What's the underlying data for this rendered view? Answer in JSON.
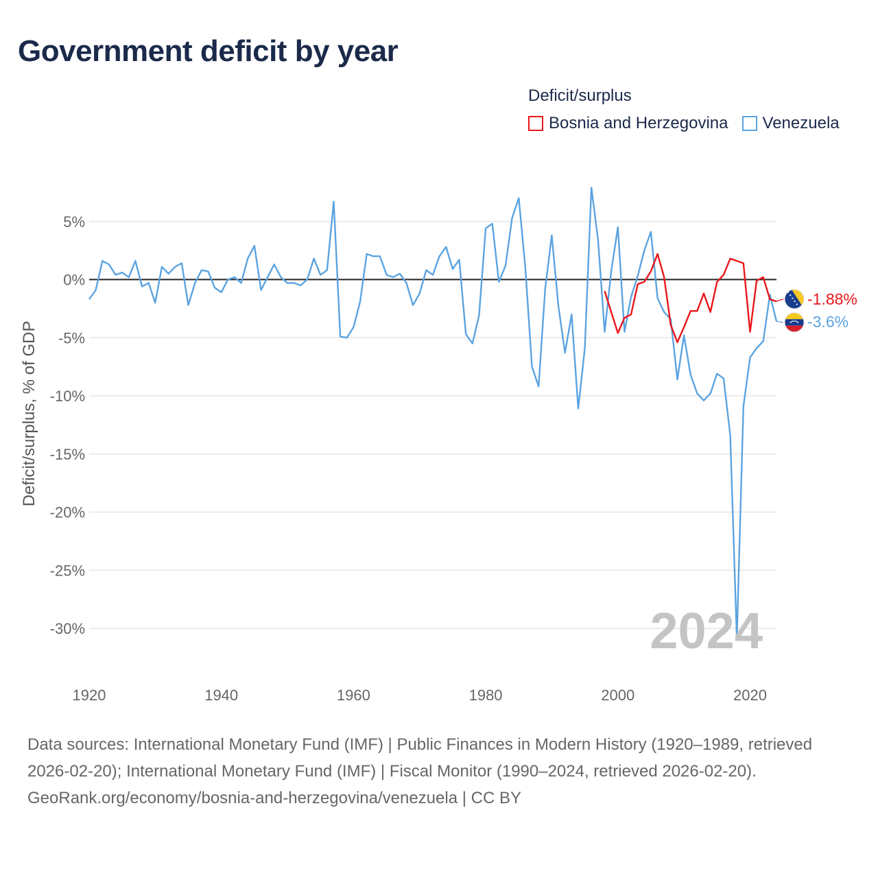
{
  "title": "Government deficit by year",
  "legend": {
    "title": "Deficit/surplus",
    "items": [
      {
        "label": "Bosnia and Herzegovina",
        "color": "#e8161b"
      },
      {
        "label": "Venezuela",
        "color": "#5ba3e0"
      }
    ]
  },
  "footer": {
    "sources": "Data sources: International Monetary Fund (IMF) | Public Finances in Modern History (1920–1989, retrieved 2026-02-20); International Monetary Fund (IMF) | Fiscal Monitor (1990–2024, retrieved 2026-02-20).",
    "link": "GeoRank.org/economy/bosnia-and-herzegovina/venezuela | CC BY"
  },
  "chart_data": {
    "type": "line",
    "title": "Government deficit by year",
    "xlabel": "",
    "ylabel": "Deficit/surplus, % of GDP",
    "xlim": [
      1920,
      2024
    ],
    "ylim": [
      -32,
      10
    ],
    "x_ticks": [
      1920,
      1940,
      1960,
      1980,
      2000,
      2020
    ],
    "x_tick_labels": [
      "1920",
      "1940",
      "1960",
      "1980",
      "2000",
      "2020"
    ],
    "y_ticks": [
      5,
      0,
      -5,
      -10,
      -15,
      -20,
      -25,
      -30
    ],
    "y_tick_labels": [
      "5%",
      "0%",
      "-5%",
      "-10%",
      "-15%",
      "-20%",
      "-25%",
      "-30%"
    ],
    "year_label": "2024",
    "grid": true,
    "zero_line": true,
    "legend_position": "top-right",
    "series": [
      {
        "name": "Bosnia and Herzegovina",
        "color": "#e8161b",
        "end_label": "-1.88%",
        "flag": "bosnia-and-herzegovina-flag",
        "x": [
          1998,
          1999,
          2000,
          2001,
          2002,
          2003,
          2004,
          2005,
          2006,
          2007,
          2008,
          2009,
          2010,
          2011,
          2012,
          2013,
          2014,
          2015,
          2016,
          2017,
          2018,
          2019,
          2020,
          2021,
          2022,
          2023,
          2024
        ],
        "values": [
          -1.0,
          -2.8,
          -4.6,
          -3.3,
          -3.0,
          -0.4,
          -0.2,
          0.7,
          2.2,
          0.2,
          -3.9,
          -5.4,
          -4.1,
          -2.7,
          -2.7,
          -1.2,
          -2.8,
          -0.2,
          0.4,
          1.8,
          1.6,
          1.4,
          -4.5,
          -0.1,
          0.2,
          -1.7,
          -1.88
        ]
      },
      {
        "name": "Venezuela",
        "color": "#5ba3e0",
        "end_label": "-3.6%",
        "flag": "venezuela-flag",
        "x": [
          1920,
          1921,
          1922,
          1923,
          1924,
          1925,
          1926,
          1927,
          1928,
          1929,
          1930,
          1931,
          1932,
          1933,
          1934,
          1935,
          1936,
          1937,
          1938,
          1939,
          1940,
          1941,
          1942,
          1943,
          1944,
          1945,
          1946,
          1947,
          1948,
          1949,
          1950,
          1951,
          1952,
          1953,
          1954,
          1955,
          1956,
          1957,
          1958,
          1959,
          1960,
          1961,
          1962,
          1963,
          1964,
          1965,
          1966,
          1967,
          1968,
          1969,
          1970,
          1971,
          1972,
          1973,
          1974,
          1975,
          1976,
          1977,
          1978,
          1979,
          1980,
          1981,
          1982,
          1983,
          1984,
          1985,
          1986,
          1987,
          1988,
          1989,
          1990,
          1991,
          1992,
          1993,
          1994,
          1995,
          1996,
          1997,
          1998,
          1999,
          2000,
          2001,
          2002,
          2003,
          2004,
          2005,
          2006,
          2007,
          2008,
          2009,
          2010,
          2011,
          2012,
          2013,
          2014,
          2015,
          2016,
          2017,
          2018,
          2019,
          2020,
          2021,
          2022,
          2023,
          2024
        ],
        "values": [
          -1.7,
          -0.9,
          1.6,
          1.3,
          0.4,
          0.6,
          0.2,
          1.6,
          -0.6,
          -0.3,
          -2.0,
          1.1,
          0.5,
          1.1,
          1.4,
          -2.2,
          -0.3,
          0.8,
          0.7,
          -0.7,
          -1.1,
          0.0,
          0.2,
          -0.3,
          1.8,
          2.9,
          -0.9,
          0.2,
          1.3,
          0.2,
          -0.3,
          -0.3,
          -0.5,
          0.0,
          1.8,
          0.4,
          0.8,
          6.7,
          -4.9,
          -5.0,
          -4.1,
          -1.9,
          2.2,
          2.0,
          2.0,
          0.4,
          0.2,
          0.5,
          -0.3,
          -2.2,
          -1.2,
          0.8,
          0.4,
          2.0,
          2.8,
          0.9,
          1.7,
          -4.7,
          -5.5,
          -3.1,
          4.4,
          4.8,
          -0.2,
          1.2,
          5.3,
          7.0,
          1.0,
          -7.5,
          -9.2,
          -0.8,
          3.8,
          -2.3,
          -6.3,
          -3.0,
          -11.1,
          -5.9,
          7.9,
          3.4,
          -4.5,
          0.7,
          4.5,
          -4.5,
          -1.5,
          0.3,
          2.5,
          4.1,
          -1.6,
          -2.8,
          -3.4,
          -8.6,
          -4.8,
          -8.2,
          -9.8,
          -10.4,
          -9.8,
          -8.1,
          -8.5,
          -13.4,
          -30.9,
          -10.9,
          -6.7,
          -5.9,
          -5.3,
          -1.3,
          -3.6
        ]
      }
    ]
  }
}
